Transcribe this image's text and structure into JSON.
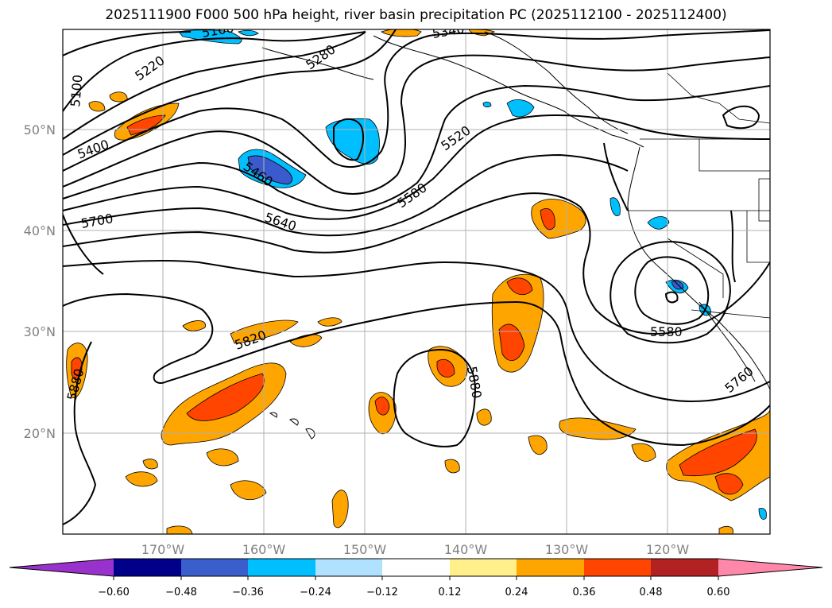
{
  "title": "2025111900 F000 500 hPa height, river basin precipitation PC (2025112100 - 2025112400)",
  "map": {
    "lat_labels": [
      "50°N",
      "40°N",
      "30°N",
      "20°N"
    ],
    "lon_labels": [
      "170°W",
      "160°W",
      "150°W",
      "140°W",
      "130°W",
      "120°W"
    ],
    "contour_labels": [
      "5100",
      "5220",
      "5400",
      "5460",
      "5580",
      "5520",
      "5700",
      "5640",
      "5820",
      "5880",
      "5880",
      "5580",
      "5760",
      "5340",
      "5280",
      "5160"
    ],
    "colors": {
      "pos_weak": "#ffe88c",
      "pos_orange": "#ffa500",
      "pos_red": "#ff4500",
      "pos_dark": "#b22222",
      "neg_light": "#00bfff",
      "neg_blue": "#3b5bcc",
      "grid": "#b0b0b0",
      "contour": "#000000"
    }
  },
  "colorbar": {
    "ticks": [
      "−0.60",
      "−0.48",
      "−0.36",
      "−0.24",
      "−0.12",
      "0.12",
      "0.24",
      "0.36",
      "0.48",
      "0.60"
    ],
    "colors": [
      "#9932cc",
      "#00008b",
      "#3a5fcd",
      "#00bfff",
      "#b0e2ff",
      "#ffffff",
      "#fff08c",
      "#ffa500",
      "#ff4500",
      "#b22222",
      "#ff88aa",
      "#ff88aa"
    ]
  }
}
